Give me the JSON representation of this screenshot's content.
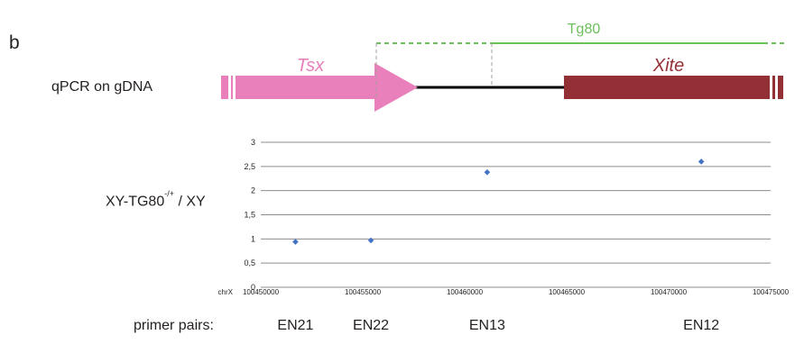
{
  "panel_label": "b",
  "row_label": "qPCR on gDNA",
  "genes": {
    "tsx": {
      "label": "Tsx",
      "color": "#e97fbb"
    },
    "xite": {
      "label": "Xite",
      "color": "#933036"
    },
    "tg80": {
      "label": "Tg80",
      "color": "#6cbf5a"
    }
  },
  "primer_title": "primer pairs:",
  "chart_data": {
    "type": "scatter",
    "ylabel_main": "XY-TG80",
    "ylabel_sup": "-/+",
    "ylabel_tail": "/ XY",
    "xlabel_prefix": "chrX",
    "xlim": [
      100450000,
      100475000
    ],
    "ylim": [
      0,
      3
    ],
    "x_ticks": [
      "100450000",
      "100455000",
      "100460000",
      "100465000",
      "100470000",
      "100475000"
    ],
    "y_ticks": [
      "0",
      "0,5",
      "1",
      "1,5",
      "2",
      "2,5",
      "3"
    ],
    "grid": true,
    "marker_color": "#4472c4",
    "points": [
      {
        "label": "EN21",
        "x": 100451700,
        "y": 0.94
      },
      {
        "label": "EN22",
        "x": 100455400,
        "y": 0.97
      },
      {
        "label": "EN13",
        "x": 100461100,
        "y": 2.38
      },
      {
        "label": "EN12",
        "x": 100471600,
        "y": 2.6
      }
    ]
  }
}
